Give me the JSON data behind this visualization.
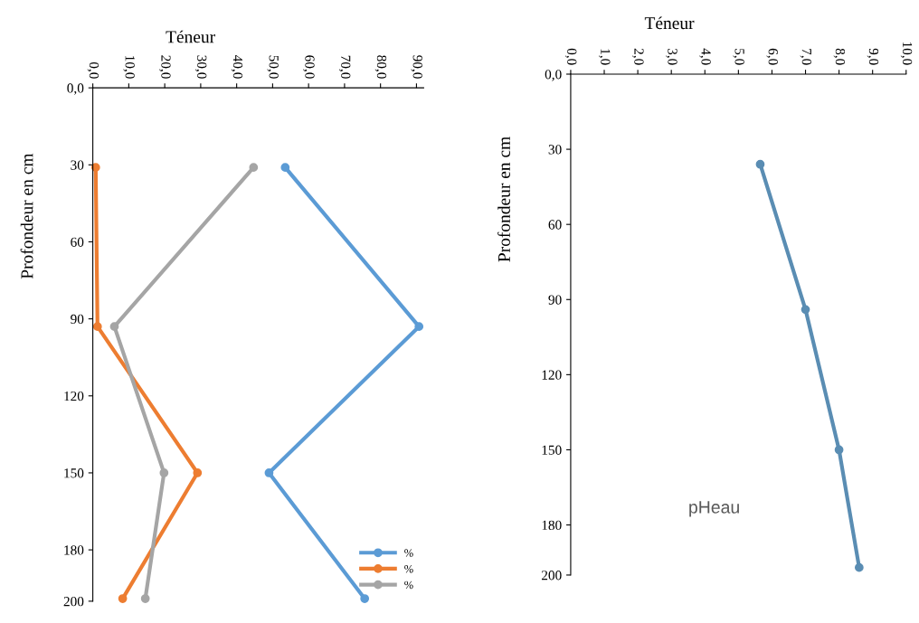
{
  "chart_data": [
    {
      "type": "line",
      "title": "Téneur",
      "ylabel": "Profondeur en cm",
      "xlim": [
        0,
        92
      ],
      "xticks": [
        {
          "value": 0,
          "label": "0,0"
        },
        {
          "value": 10,
          "label": "10,0"
        },
        {
          "value": 20,
          "label": "20,0"
        },
        {
          "value": 30,
          "label": "30,0"
        },
        {
          "value": 40,
          "label": "40,0"
        },
        {
          "value": 50,
          "label": "50,0"
        },
        {
          "value": 60,
          "label": "60,0"
        },
        {
          "value": 70,
          "label": "70,0"
        },
        {
          "value": 80,
          "label": "80,0"
        },
        {
          "value": 90,
          "label": "90,0"
        }
      ],
      "ylim": [
        200,
        0
      ],
      "yticks": [
        {
          "value": 0,
          "label": "0,0"
        },
        30,
        60,
        90,
        120,
        150,
        180,
        200
      ],
      "marker": "circle",
      "grid": false,
      "legend": "bottom right",
      "series": [
        {
          "name": "%",
          "color": "#5b9bd5",
          "x": [
            53.5,
            90.7,
            49,
            75.6
          ],
          "values": [
            31,
            93,
            150,
            199
          ]
        },
        {
          "name": "%",
          "color": "#ed7d31",
          "x": [
            0.8,
            1.3,
            29.1,
            8.3
          ],
          "values": [
            31,
            93,
            150,
            199
          ]
        },
        {
          "name": "%",
          "color": "#a5a5a5",
          "x": [
            44.7,
            6,
            19.8,
            14.6
          ],
          "values": [
            31,
            93,
            150,
            199
          ]
        }
      ]
    },
    {
      "type": "line",
      "title": "Téneur",
      "ylabel": "Profondeur en cm",
      "xlim": [
        0,
        10
      ],
      "xticks": [
        {
          "value": 0,
          "label": "0,0"
        },
        {
          "value": 1,
          "label": "1,0"
        },
        {
          "value": 2,
          "label": "2,0"
        },
        {
          "value": 3,
          "label": "3,0"
        },
        {
          "value": 4,
          "label": "4,0"
        },
        {
          "value": 5,
          "label": "5,0"
        },
        {
          "value": 6,
          "label": "6,0"
        },
        {
          "value": 7,
          "label": "7,0"
        },
        {
          "value": 8,
          "label": "8,0"
        },
        {
          "value": 9,
          "label": "9,0"
        },
        {
          "value": 10,
          "label": "10,0"
        }
      ],
      "ylim": [
        200,
        0
      ],
      "yticks": [
        {
          "value": 0,
          "label": "0,0"
        },
        30,
        60,
        90,
        120,
        150,
        180,
        200
      ],
      "marker": "circle",
      "grid": false,
      "legend": false,
      "series": [
        {
          "name": "pHeau",
          "color": "#5a8db3",
          "x": [
            5.65,
            7.0,
            8.0,
            8.6
          ],
          "values": [
            36,
            94,
            150,
            197
          ]
        }
      ]
    }
  ]
}
